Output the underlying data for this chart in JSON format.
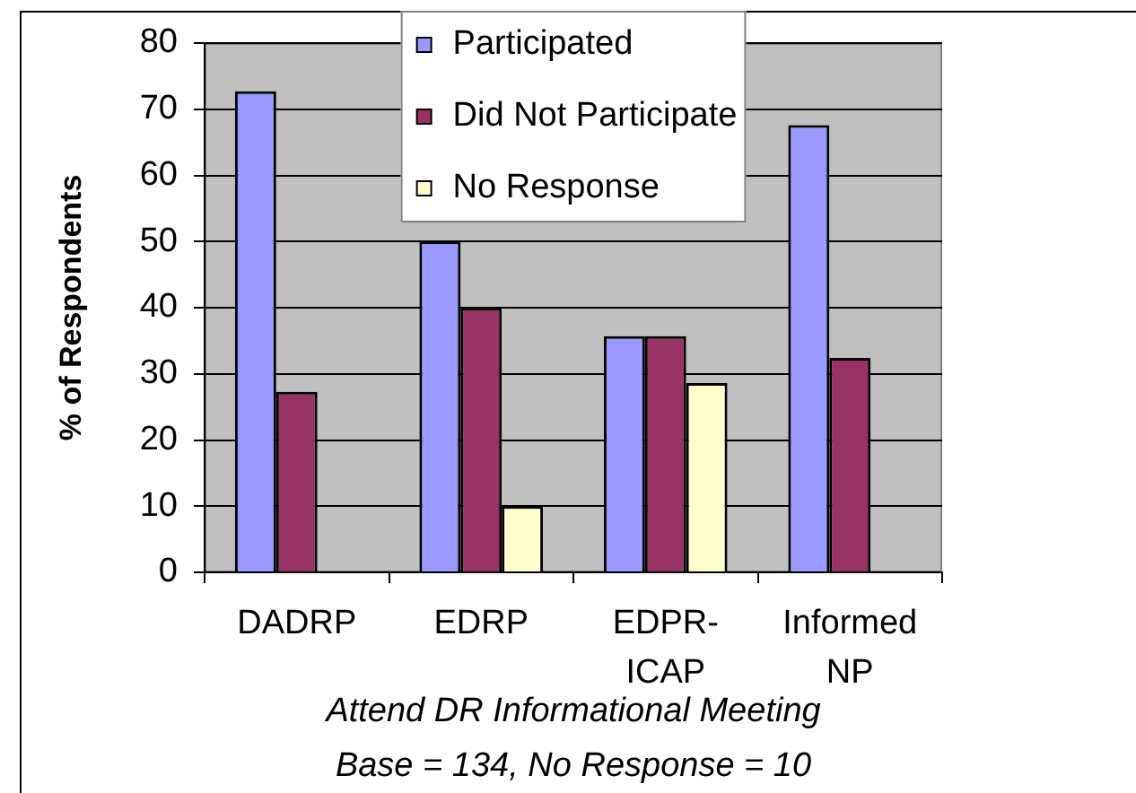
{
  "chart_data": {
    "type": "bar",
    "ylabel": "% of Respondents",
    "xlabel": "Attend DR Informational Meeting",
    "annotations": [
      "Base = 134, No Response = 10"
    ],
    "categories": [
      "DADRP",
      "EDRP",
      "EDPR-ICAP",
      "Informed NP"
    ],
    "series": [
      {
        "name": "Participated",
        "color": "#9999ff",
        "values": [
          72.7,
          50,
          35.7,
          67.6
        ]
      },
      {
        "name": "Did Not Participate",
        "color": "#993366",
        "values": [
          27.3,
          40,
          35.7,
          32.4
        ]
      },
      {
        "name": "No Response",
        "color": "#ffffcc",
        "values": [
          null,
          10,
          28.6,
          null
        ]
      }
    ],
    "ylim": [
      0,
      80
    ],
    "yticks": [
      0,
      10,
      20,
      30,
      40,
      50,
      60,
      70,
      80
    ],
    "grid": "y",
    "legend": "top"
  }
}
